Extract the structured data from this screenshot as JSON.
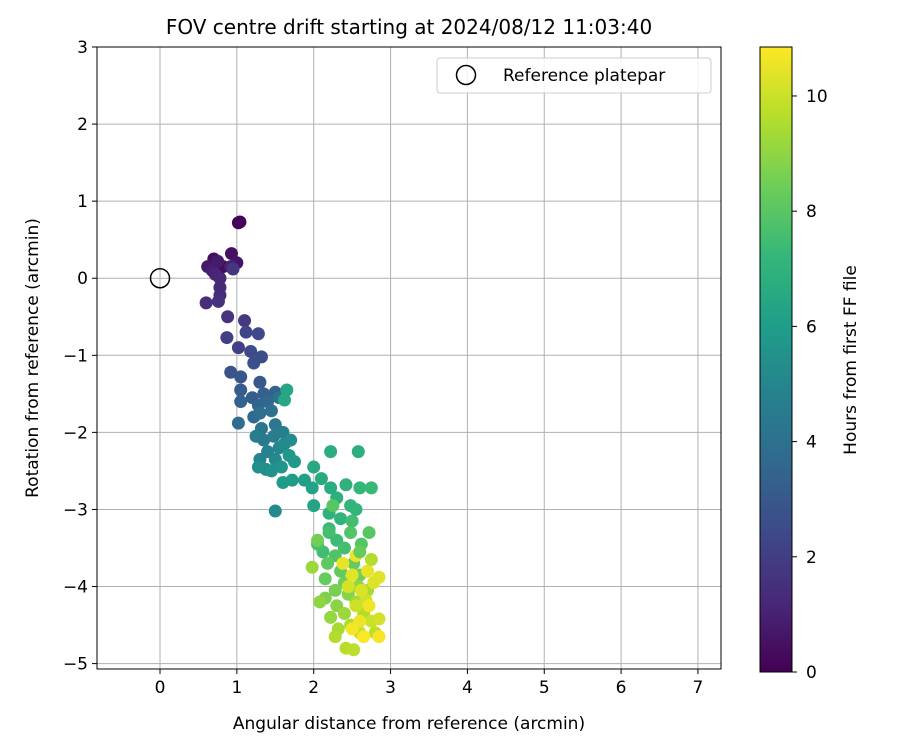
{
  "chart_data": {
    "type": "scatter",
    "title": "FOV centre drift starting at 2024/08/12 11:03:40",
    "xlabel": "Angular distance from reference (arcmin)",
    "ylabel": "Rotation from reference (arcmin)",
    "xlim": [
      -0.82,
      7.3
    ],
    "ylim": [
      -5.07,
      3.0
    ],
    "xticks": [
      0,
      1,
      2,
      3,
      4,
      5,
      6,
      7
    ],
    "yticks": [
      -5,
      -4,
      -3,
      -2,
      -1,
      0,
      1,
      2,
      3
    ],
    "grid": true,
    "legend": {
      "label": "Reference platepar",
      "placement": "top-right"
    },
    "reference_point": {
      "x": 0,
      "y": 0
    },
    "colorbar": {
      "label": "Hours from first FF file",
      "min": 0,
      "max": 10.85,
      "ticks": [
        0,
        2,
        4,
        6,
        8,
        10
      ],
      "colormap": "viridis"
    },
    "colors": {
      "viridis": [
        "#440154",
        "#482878",
        "#3e4989",
        "#31688e",
        "#26828e",
        "#1f9e89",
        "#35b779",
        "#6ece58",
        "#b5de2b",
        "#fde725"
      ],
      "reference_edge": "#000000",
      "grid": "#b0b0b0"
    },
    "points": [
      [
        1.02,
        0.72,
        0.05
      ],
      [
        1.04,
        0.73,
        0.1
      ],
      [
        0.82,
        0.15,
        0.3
      ],
      [
        0.7,
        0.25,
        0.4
      ],
      [
        0.93,
        0.32,
        0.5
      ],
      [
        1.0,
        0.2,
        0.6
      ],
      [
        0.62,
        0.15,
        0.7
      ],
      [
        0.75,
        0.22,
        0.8
      ],
      [
        0.68,
        0.1,
        0.9
      ],
      [
        0.92,
        0.15,
        1.0
      ],
      [
        0.72,
        0.05,
        1.1
      ],
      [
        0.78,
        0.0,
        1.2
      ],
      [
        0.78,
        -0.12,
        1.3
      ],
      [
        0.78,
        -0.22,
        1.4
      ],
      [
        0.6,
        -0.32,
        1.5
      ],
      [
        0.76,
        -0.3,
        1.55
      ],
      [
        0.88,
        -0.5,
        1.6
      ],
      [
        0.95,
        0.12,
        1.7
      ],
      [
        1.1,
        -0.55,
        1.9
      ],
      [
        0.87,
        -0.77,
        2.0
      ],
      [
        1.02,
        -0.9,
        2.1
      ],
      [
        1.12,
        -0.7,
        2.3
      ],
      [
        1.28,
        -0.72,
        2.4
      ],
      [
        1.18,
        -0.95,
        2.5
      ],
      [
        1.32,
        -1.02,
        2.6
      ],
      [
        1.22,
        -1.1,
        2.7
      ],
      [
        0.92,
        -1.22,
        2.8
      ],
      [
        1.05,
        -1.28,
        2.9
      ],
      [
        1.3,
        -1.35,
        3.0
      ],
      [
        1.05,
        -1.45,
        3.1
      ],
      [
        1.2,
        -1.55,
        3.2
      ],
      [
        1.35,
        -1.5,
        3.3
      ],
      [
        1.05,
        -1.6,
        3.35
      ],
      [
        1.5,
        -1.48,
        3.4
      ],
      [
        1.28,
        -1.65,
        3.5
      ],
      [
        1.4,
        -1.6,
        3.6
      ],
      [
        1.22,
        -1.8,
        3.7
      ],
      [
        1.02,
        -1.88,
        3.8
      ],
      [
        1.3,
        -1.75,
        3.9
      ],
      [
        1.45,
        -1.72,
        4.0
      ],
      [
        1.55,
        -1.55,
        4.1
      ],
      [
        1.32,
        -1.95,
        4.2
      ],
      [
        1.5,
        -1.9,
        4.3
      ],
      [
        1.35,
        -2.1,
        4.4
      ],
      [
        1.25,
        -2.05,
        4.5
      ],
      [
        1.48,
        -2.05,
        4.6
      ],
      [
        1.6,
        -2.0,
        4.7
      ],
      [
        1.4,
        -2.25,
        4.8
      ],
      [
        1.3,
        -2.35,
        4.9
      ],
      [
        1.55,
        -2.2,
        5.0
      ],
      [
        1.5,
        -2.35,
        5.1
      ],
      [
        1.62,
        -2.15,
        5.2
      ],
      [
        1.7,
        -2.1,
        5.25
      ],
      [
        1.38,
        -2.48,
        5.3
      ],
      [
        1.28,
        -2.45,
        5.4
      ],
      [
        1.45,
        -2.5,
        5.5
      ],
      [
        1.58,
        -2.45,
        5.6
      ],
      [
        1.68,
        -2.3,
        5.7
      ],
      [
        1.75,
        -2.38,
        5.8
      ],
      [
        1.6,
        -2.65,
        5.9
      ],
      [
        1.72,
        -2.62,
        6.0
      ],
      [
        1.88,
        -2.62,
        6.1
      ],
      [
        1.98,
        -2.72,
        6.2
      ],
      [
        2.0,
        -2.95,
        6.3
      ],
      [
        1.65,
        -1.45,
        6.4
      ],
      [
        1.62,
        -1.58,
        6.45
      ],
      [
        1.5,
        -3.02,
        5.2
      ],
      [
        2.0,
        -2.45,
        6.5
      ],
      [
        2.1,
        -2.6,
        6.6
      ],
      [
        2.22,
        -2.72,
        6.7
      ],
      [
        2.22,
        -2.25,
        6.75
      ],
      [
        2.58,
        -2.25,
        6.8
      ],
      [
        2.3,
        -2.85,
        6.85
      ],
      [
        2.42,
        -2.68,
        6.9
      ],
      [
        2.2,
        -3.05,
        7.0
      ],
      [
        2.35,
        -3.12,
        7.05
      ],
      [
        2.55,
        -3.0,
        7.1
      ],
      [
        2.48,
        -2.95,
        7.15
      ],
      [
        2.6,
        -2.72,
        7.2
      ],
      [
        2.75,
        -2.72,
        7.3
      ],
      [
        2.2,
        -3.25,
        7.3
      ],
      [
        2.3,
        -3.4,
        7.4
      ],
      [
        2.12,
        -3.55,
        7.5
      ],
      [
        2.5,
        -3.15,
        7.55
      ],
      [
        2.4,
        -3.5,
        7.6
      ],
      [
        2.05,
        -3.45,
        7.7
      ],
      [
        2.28,
        -3.6,
        7.8
      ],
      [
        2.48,
        -3.3,
        7.85
      ],
      [
        2.62,
        -3.45,
        7.9
      ],
      [
        2.72,
        -3.3,
        8.0
      ],
      [
        2.25,
        -2.95,
        8.0
      ],
      [
        2.18,
        -3.7,
        8.1
      ],
      [
        2.35,
        -3.8,
        8.2
      ],
      [
        2.52,
        -3.7,
        8.25
      ],
      [
        2.15,
        -3.9,
        8.3
      ],
      [
        2.4,
        -3.95,
        8.4
      ],
      [
        2.6,
        -3.85,
        8.5
      ],
      [
        2.05,
        -3.4,
        8.5
      ],
      [
        2.28,
        -4.05,
        8.6
      ],
      [
        2.15,
        -4.15,
        8.7
      ],
      [
        2.45,
        -4.1,
        8.8
      ],
      [
        2.3,
        -4.25,
        8.9
      ],
      [
        2.58,
        -4.0,
        9.0
      ],
      [
        2.08,
        -4.2,
        9.0
      ],
      [
        2.22,
        -4.4,
        9.1
      ],
      [
        2.4,
        -4.35,
        9.2
      ],
      [
        2.55,
        -4.2,
        9.3
      ],
      [
        2.7,
        -4.05,
        9.4
      ],
      [
        2.32,
        -4.55,
        9.4
      ],
      [
        2.48,
        -4.5,
        9.5
      ],
      [
        2.65,
        -4.35,
        9.6
      ],
      [
        2.28,
        -4.65,
        9.6
      ],
      [
        2.42,
        -4.8,
        9.7
      ],
      [
        2.52,
        -4.82,
        9.75
      ],
      [
        2.8,
        -4.6,
        9.8
      ],
      [
        2.6,
        -4.6,
        9.9
      ],
      [
        2.75,
        -4.45,
        10.0
      ],
      [
        2.55,
        -4.25,
        10.05
      ],
      [
        2.68,
        -4.18,
        10.1
      ],
      [
        2.85,
        -4.42,
        10.15
      ],
      [
        2.45,
        -4.0,
        10.2
      ],
      [
        2.62,
        -4.05,
        10.25
      ],
      [
        2.78,
        -3.95,
        10.3
      ],
      [
        2.85,
        -3.88,
        10.35
      ],
      [
        2.5,
        -3.85,
        10.4
      ],
      [
        2.7,
        -3.8,
        10.45
      ],
      [
        2.38,
        -3.7,
        10.5
      ],
      [
        2.55,
        -3.6,
        10.55
      ],
      [
        2.6,
        -4.45,
        10.6
      ],
      [
        2.72,
        -4.25,
        10.65
      ],
      [
        2.5,
        -4.55,
        10.7
      ],
      [
        2.85,
        -4.65,
        10.75
      ],
      [
        2.65,
        -4.65,
        10.8
      ],
      [
        1.98,
        -3.75,
        9.2
      ],
      [
        2.2,
        -3.3,
        7.6
      ],
      [
        2.6,
        -3.55,
        8.3
      ],
      [
        2.75,
        -3.65,
        9.6
      ]
    ]
  }
}
